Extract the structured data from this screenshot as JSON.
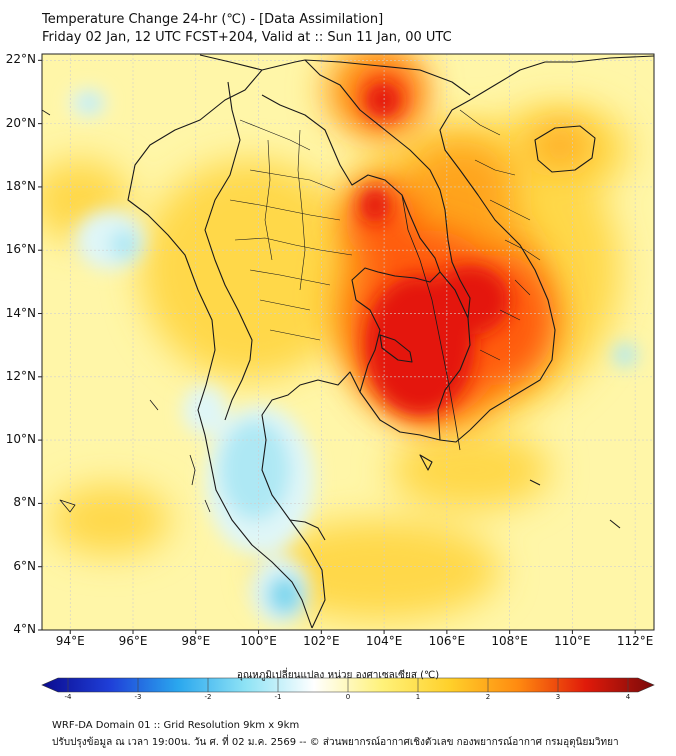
{
  "header": {
    "title_line1": "Temperature Change 24-hr (℃) - [Data Assimilation]",
    "title_line2": "Friday 02 Jan, 12 UTC FCST+204, Valid at :: Sun 11 Jan, 00 UTC"
  },
  "map": {
    "lat_labels": [
      "22°N",
      "20°N",
      "18°N",
      "16°N",
      "14°N",
      "12°N",
      "10°N",
      "8°N",
      "6°N",
      "4°N"
    ],
    "lon_labels": [
      "94°E",
      "96°E",
      "98°E",
      "100°E",
      "102°E",
      "104°E",
      "106°E",
      "108°E",
      "110°E",
      "112°E"
    ],
    "lat_range": [
      4,
      22.2
    ],
    "lon_range": [
      93.1,
      112.6
    ],
    "colors": {
      "background": "#fff6a8",
      "warm_light": "#ffd84a",
      "warm_mid": "#ffa41c",
      "warm_high": "#ff5a0a",
      "hot": "#e4140a",
      "cool_light": "#dff6f8",
      "cool_mid": "#aee8f4",
      "cool_strong": "#7fd7ee",
      "border": "#1a1a1a"
    }
  },
  "colorbar": {
    "title": "อุณหภูมิเปลี่ยนแปลง หน่วย องศาเซลเซียส (℃)",
    "ticks": [
      "-4",
      "-3",
      "-2",
      "-1",
      "0",
      "1",
      "2",
      "3",
      "4"
    ],
    "min": -4,
    "max": 4,
    "gradient": [
      "#0b0b8f",
      "#1f3fd8",
      "#2aa7ee",
      "#8fe3f5",
      "#ffffff",
      "#fff27a",
      "#ffd02a",
      "#ff8a10",
      "#e01a0a",
      "#7a0a0a"
    ]
  },
  "footer": {
    "line1": "WRF-DA Domain 01 :: Grid Resolution 9km x 9km",
    "line2": "ปรับปรุงข้อมูล ณ เวลา 19:00น. วัน ศ. ที่ 02 ม.ค. 2569 -- © ส่วนพยากรณ์อากาศเชิงตัวเลข กองพยากรณ์อากาศ กรมอุตุนิยมวิทยา"
  }
}
